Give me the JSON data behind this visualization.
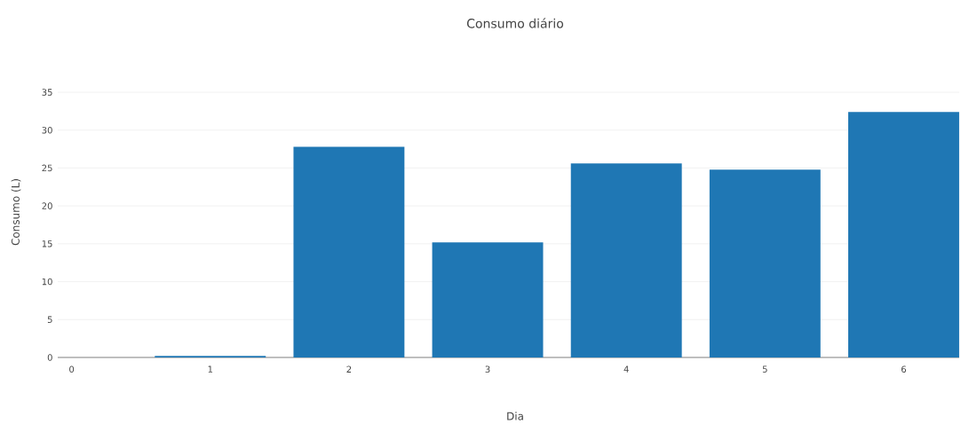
{
  "chart_data": {
    "type": "bar",
    "title": "Consumo diário",
    "xlabel": "Dia",
    "ylabel": "Consumo (L)",
    "x": [
      0,
      1,
      2,
      3,
      4,
      5,
      6
    ],
    "values": [
      0,
      0.2,
      27.8,
      15.2,
      25.6,
      24.8,
      32.4
    ],
    "color": "#1f77b4",
    "xlim": [
      -0.1,
      6.4
    ],
    "ylim": [
      0,
      35
    ],
    "xticks": [
      0,
      1,
      2,
      3,
      4,
      5,
      6
    ],
    "yticks": [
      0,
      5,
      10,
      15,
      20,
      25,
      30,
      35
    ],
    "grid": "y"
  }
}
